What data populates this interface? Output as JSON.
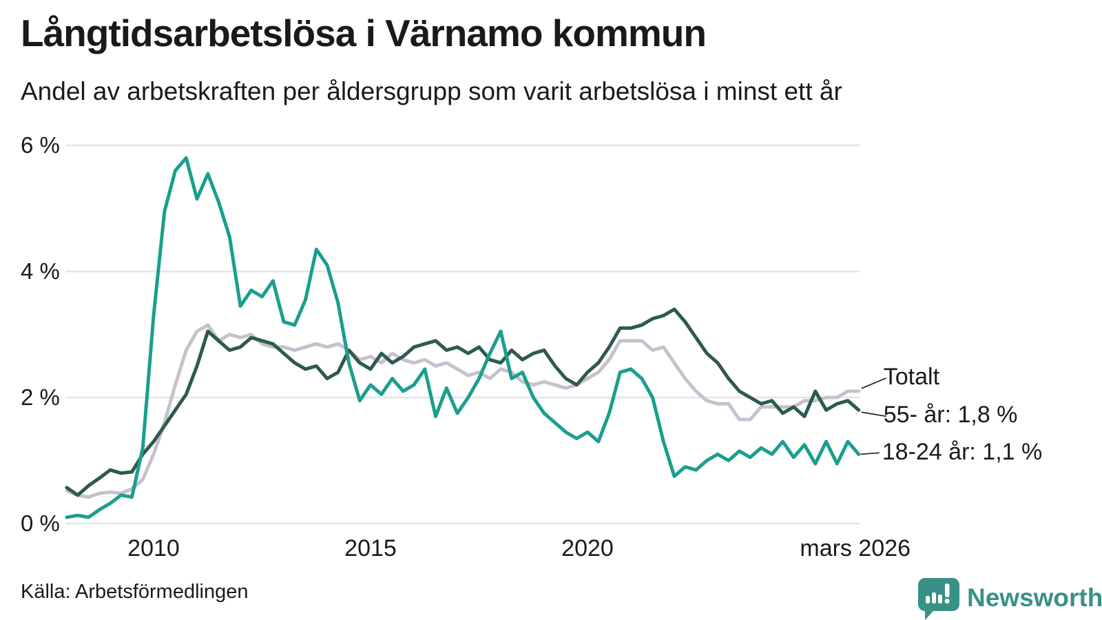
{
  "header": {
    "title": "Långtidsarbetslösa i Värnamo kommun",
    "subtitle": "Andel av arbetskraften per åldersgrupp som varit arbetslösa i minst ett år"
  },
  "footer": {
    "source": "Källa: Arbetsförmedlingen",
    "brand": "Newsworthy"
  },
  "colors": {
    "teal": "#1b9e8e",
    "dark_green": "#2d5a4e",
    "gray": "#c4c2cd",
    "gridline": "#e5e5e9",
    "text": "#1a1a1a",
    "connector": "#2b2b2b",
    "brand_teal": "#389186"
  },
  "chart_data": {
    "type": "line",
    "title": "Långtidsarbetslösa i Värnamo kommun",
    "subtitle": "Andel av arbetskraften per åldersgrupp som varit arbetslösa i minst ett år",
    "xlabel": "",
    "ylabel": "",
    "grid": true,
    "legend_position": "right-end-labels",
    "x_start": 2008.0,
    "x_step": 0.25,
    "x_end": 2026.25,
    "ylim": [
      0,
      6.3
    ],
    "yticks": [
      {
        "value": 0,
        "label": "0 %"
      },
      {
        "value": 2,
        "label": "2 %"
      },
      {
        "value": 4,
        "label": "4 %"
      },
      {
        "value": 6,
        "label": "6 %"
      }
    ],
    "xticks": [
      {
        "value": 2010,
        "label": "2010"
      },
      {
        "value": 2015,
        "label": "2015"
      },
      {
        "value": 2020,
        "label": "2020"
      },
      {
        "value": 2026.17,
        "label": "mars 2026"
      }
    ],
    "series": [
      {
        "name": "Totalt",
        "end_label": "Totalt",
        "end_value_pct": 2.1,
        "color": "#c4c2cd",
        "values": [
          0.52,
          0.45,
          0.42,
          0.48,
          0.5,
          0.48,
          0.55,
          0.7,
          1.1,
          1.6,
          2.2,
          2.75,
          3.05,
          3.15,
          2.9,
          3.0,
          2.95,
          3.0,
          2.85,
          2.8,
          2.8,
          2.75,
          2.8,
          2.85,
          2.8,
          2.85,
          2.75,
          2.6,
          2.65,
          2.55,
          2.7,
          2.6,
          2.55,
          2.6,
          2.5,
          2.55,
          2.45,
          2.35,
          2.4,
          2.3,
          2.45,
          2.4,
          2.25,
          2.2,
          2.25,
          2.2,
          2.15,
          2.2,
          2.3,
          2.4,
          2.6,
          2.9,
          2.9,
          2.9,
          2.75,
          2.8,
          2.55,
          2.3,
          2.1,
          1.95,
          1.9,
          1.9,
          1.65,
          1.65,
          1.85,
          1.85,
          1.85,
          1.85,
          1.95,
          1.95,
          2.0,
          2.0,
          2.1,
          2.1
        ]
      },
      {
        "name": "55- år",
        "end_label": "55- år: 1,8 %",
        "end_value_pct": 1.8,
        "color": "#2d5a4e",
        "values": [
          0.57,
          0.45,
          0.6,
          0.72,
          0.85,
          0.8,
          0.82,
          1.1,
          1.3,
          1.55,
          1.8,
          2.05,
          2.5,
          3.05,
          2.9,
          2.75,
          2.8,
          2.95,
          2.9,
          2.85,
          2.7,
          2.55,
          2.45,
          2.5,
          2.3,
          2.4,
          2.75,
          2.55,
          2.45,
          2.7,
          2.55,
          2.65,
          2.8,
          2.85,
          2.9,
          2.75,
          2.8,
          2.7,
          2.8,
          2.6,
          2.55,
          2.75,
          2.6,
          2.7,
          2.75,
          2.5,
          2.3,
          2.2,
          2.4,
          2.55,
          2.8,
          3.1,
          3.1,
          3.15,
          3.25,
          3.3,
          3.4,
          3.2,
          2.95,
          2.7,
          2.55,
          2.3,
          2.1,
          2.0,
          1.9,
          1.95,
          1.75,
          1.85,
          1.7,
          2.1,
          1.8,
          1.9,
          1.95,
          1.8
        ]
      },
      {
        "name": "18-24 år",
        "end_label": "18-24 år: 1,1 %",
        "end_value_pct": 1.1,
        "color": "#1b9e8e",
        "values": [
          0.1,
          0.13,
          0.1,
          0.22,
          0.32,
          0.45,
          0.42,
          1.2,
          3.3,
          4.95,
          5.6,
          5.8,
          5.15,
          5.55,
          5.1,
          4.55,
          3.45,
          3.7,
          3.6,
          3.85,
          3.2,
          3.15,
          3.55,
          4.35,
          4.1,
          3.5,
          2.55,
          1.95,
          2.2,
          2.05,
          2.3,
          2.1,
          2.2,
          2.45,
          1.7,
          2.15,
          1.75,
          2.0,
          2.3,
          2.7,
          3.05,
          2.3,
          2.4,
          2.0,
          1.75,
          1.6,
          1.45,
          1.35,
          1.45,
          1.3,
          1.75,
          2.4,
          2.45,
          2.3,
          2.0,
          1.3,
          0.75,
          0.9,
          0.85,
          1.0,
          1.1,
          1.0,
          1.15,
          1.05,
          1.2,
          1.1,
          1.3,
          1.05,
          1.25,
          0.95,
          1.3,
          0.95,
          1.3,
          1.1
        ]
      }
    ]
  }
}
